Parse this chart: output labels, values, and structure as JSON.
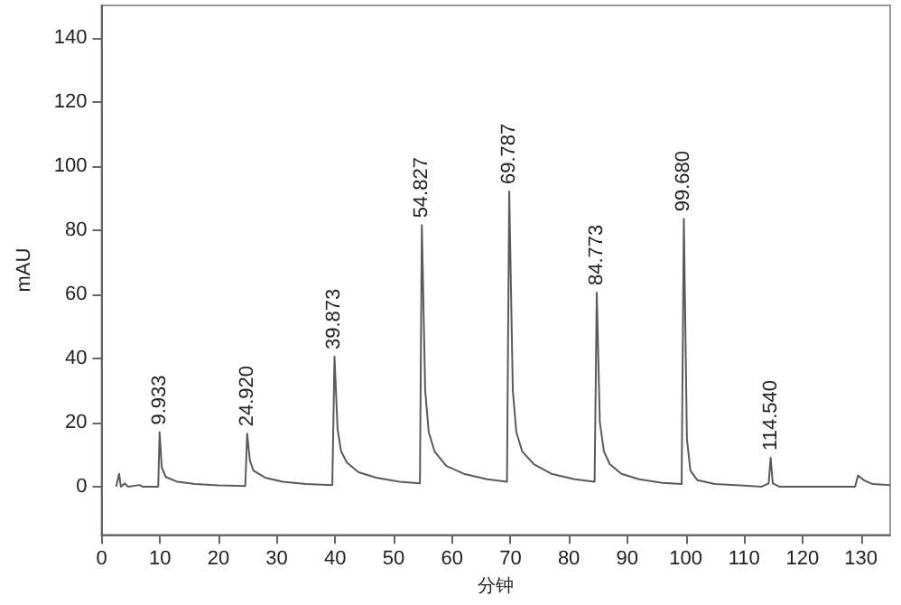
{
  "chart_data": {
    "type": "line",
    "xlabel": "分钟",
    "ylabel": "mAU",
    "xlim": [
      0,
      135
    ],
    "ylim": [
      -15,
      150
    ],
    "xticks": [
      0,
      10,
      20,
      30,
      40,
      50,
      60,
      70,
      80,
      90,
      100,
      110,
      120,
      130
    ],
    "yticks": [
      0,
      20,
      40,
      60,
      80,
      100,
      120,
      140
    ],
    "grid": false,
    "marker": "none",
    "line_style": "solid",
    "series": [
      {
        "color": "#5a5a5a",
        "x": [
          2.5,
          3,
          3.3,
          4,
          4.5,
          6.5,
          7,
          9.7,
          9.933,
          10.3,
          11,
          13,
          16,
          20,
          24.6,
          24.92,
          25.4,
          26,
          28,
          31,
          35,
          39.5,
          39.873,
          40.4,
          41,
          42,
          44,
          47,
          51,
          54.5,
          54.827,
          55.4,
          56,
          57,
          59,
          62,
          66,
          69.4,
          69.787,
          70.4,
          71,
          72,
          74,
          77,
          81,
          84.4,
          84.773,
          85.3,
          86,
          87,
          89,
          92,
          96,
          99.3,
          99.68,
          100.2,
          100.8,
          102,
          105,
          110,
          113,
          114.2,
          114.54,
          114.9,
          116,
          129,
          129.5,
          130.5,
          132,
          135
        ],
        "values": [
          0,
          4,
          0,
          1,
          0,
          0.5,
          0,
          0,
          17,
          6,
          3,
          1.5,
          0.8,
          0.4,
          0.2,
          16.5,
          8,
          5,
          2.8,
          1.5,
          0.8,
          0.5,
          40.5,
          18,
          11,
          7.5,
          4.5,
          2.8,
          1.5,
          1,
          81.5,
          30,
          17,
          11,
          6.5,
          4,
          2.3,
          1.5,
          92,
          30,
          17,
          11,
          7,
          4,
          2.3,
          1.5,
          60.5,
          20,
          11,
          7,
          4,
          2.3,
          1.2,
          0.8,
          83.5,
          15,
          5,
          2,
          0.8,
          0.3,
          0,
          1,
          9,
          1,
          0,
          0,
          3.5,
          2,
          0.8,
          0.5
        ]
      }
    ],
    "annotations": [
      {
        "text": "9.933",
        "x": 9.933,
        "y": 17
      },
      {
        "text": "24.920",
        "x": 24.92,
        "y": 16.5
      },
      {
        "text": "39.873",
        "x": 39.873,
        "y": 40.5
      },
      {
        "text": "54.827",
        "x": 54.827,
        "y": 81.5
      },
      {
        "text": "69.787",
        "x": 69.787,
        "y": 92
      },
      {
        "text": "84.773",
        "x": 84.773,
        "y": 60.5
      },
      {
        "text": "99.680",
        "x": 99.68,
        "y": 83.5
      },
      {
        "text": "114.540",
        "x": 114.54,
        "y": 9
      }
    ]
  }
}
